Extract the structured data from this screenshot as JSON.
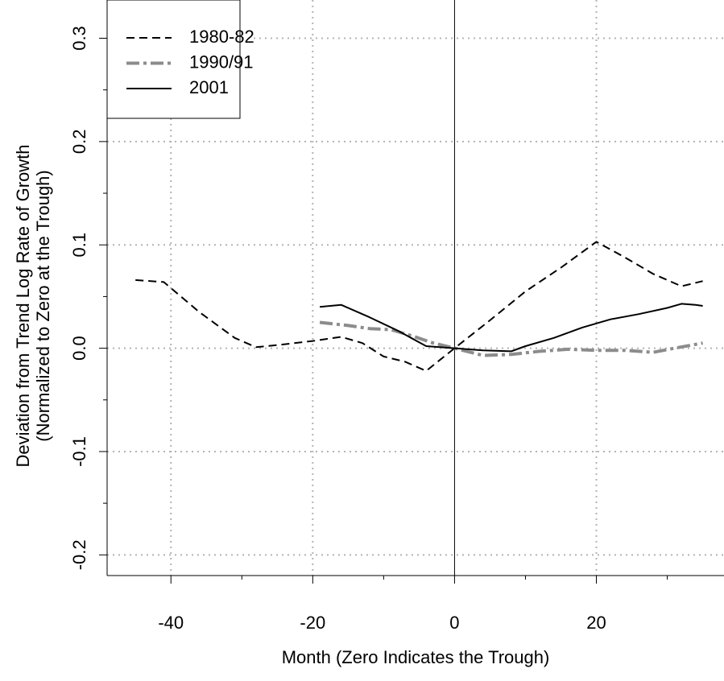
{
  "chart_data": {
    "type": "line",
    "xlabel": "Month (Zero Indicates the Trough)",
    "ylabel": [
      "Deviation from Trend Log Rate of Growth",
      "(Normalized to Zero at the Trough)"
    ],
    "xlim": [
      -49,
      38
    ],
    "ylim": [
      -0.22,
      0.337
    ],
    "xticks": [
      -40,
      -20,
      0,
      20
    ],
    "yticks": [
      -0.2,
      -0.1,
      {
        "value": 0,
        "label": "0.0"
      },
      0.1,
      0.2,
      0.3
    ],
    "xminor": [
      -30,
      -10,
      10,
      30
    ],
    "yminor": [
      -0.15,
      -0.05,
      0.05,
      0.15,
      0.25
    ],
    "xgrid": [
      -40,
      -20,
      20
    ],
    "zero_line_x": 0,
    "grid": true,
    "legend": "top-left",
    "series": [
      {
        "name": "1980-82",
        "color": "#000000",
        "style": "dashed",
        "x": [
          -45,
          -41,
          -36,
          -31,
          -28,
          -25,
          -20,
          -16,
          -13,
          -10,
          -7,
          -4,
          -2,
          0,
          5,
          10,
          15,
          20,
          24,
          28,
          32,
          35
        ],
        "values": [
          0.066,
          0.064,
          0.035,
          0.01,
          0.001,
          0.003,
          0.007,
          0.011,
          0.005,
          -0.008,
          -0.013,
          -0.022,
          -0.011,
          0,
          0.027,
          0.055,
          0.078,
          0.103,
          0.088,
          0.072,
          0.06,
          0.065
        ]
      },
      {
        "name": "1990/91",
        "color": "#8c8c8c",
        "style": "dashdot",
        "x": [
          -19,
          -15,
          -12,
          -9,
          -6,
          -3,
          0,
          4,
          8,
          12,
          16,
          20,
          24,
          28,
          31,
          35
        ],
        "values": [
          0.025,
          0.022,
          0.019,
          0.018,
          0.012,
          0.005,
          0,
          -0.007,
          -0.006,
          -0.003,
          -0.001,
          -0.002,
          -0.002,
          -0.004,
          0,
          0.005
        ]
      },
      {
        "name": "2001",
        "color": "#000000",
        "style": "solid",
        "x": [
          -19,
          -16,
          -12,
          -8,
          -4,
          0,
          4,
          8,
          10,
          14,
          18,
          22,
          26,
          30,
          32,
          34,
          35
        ],
        "values": [
          0.04,
          0.042,
          0.03,
          0.017,
          0.002,
          0,
          -0.002,
          -0.003,
          0.002,
          0.01,
          0.02,
          0.028,
          0.033,
          0.039,
          0.043,
          0.042,
          0.041
        ]
      }
    ]
  }
}
